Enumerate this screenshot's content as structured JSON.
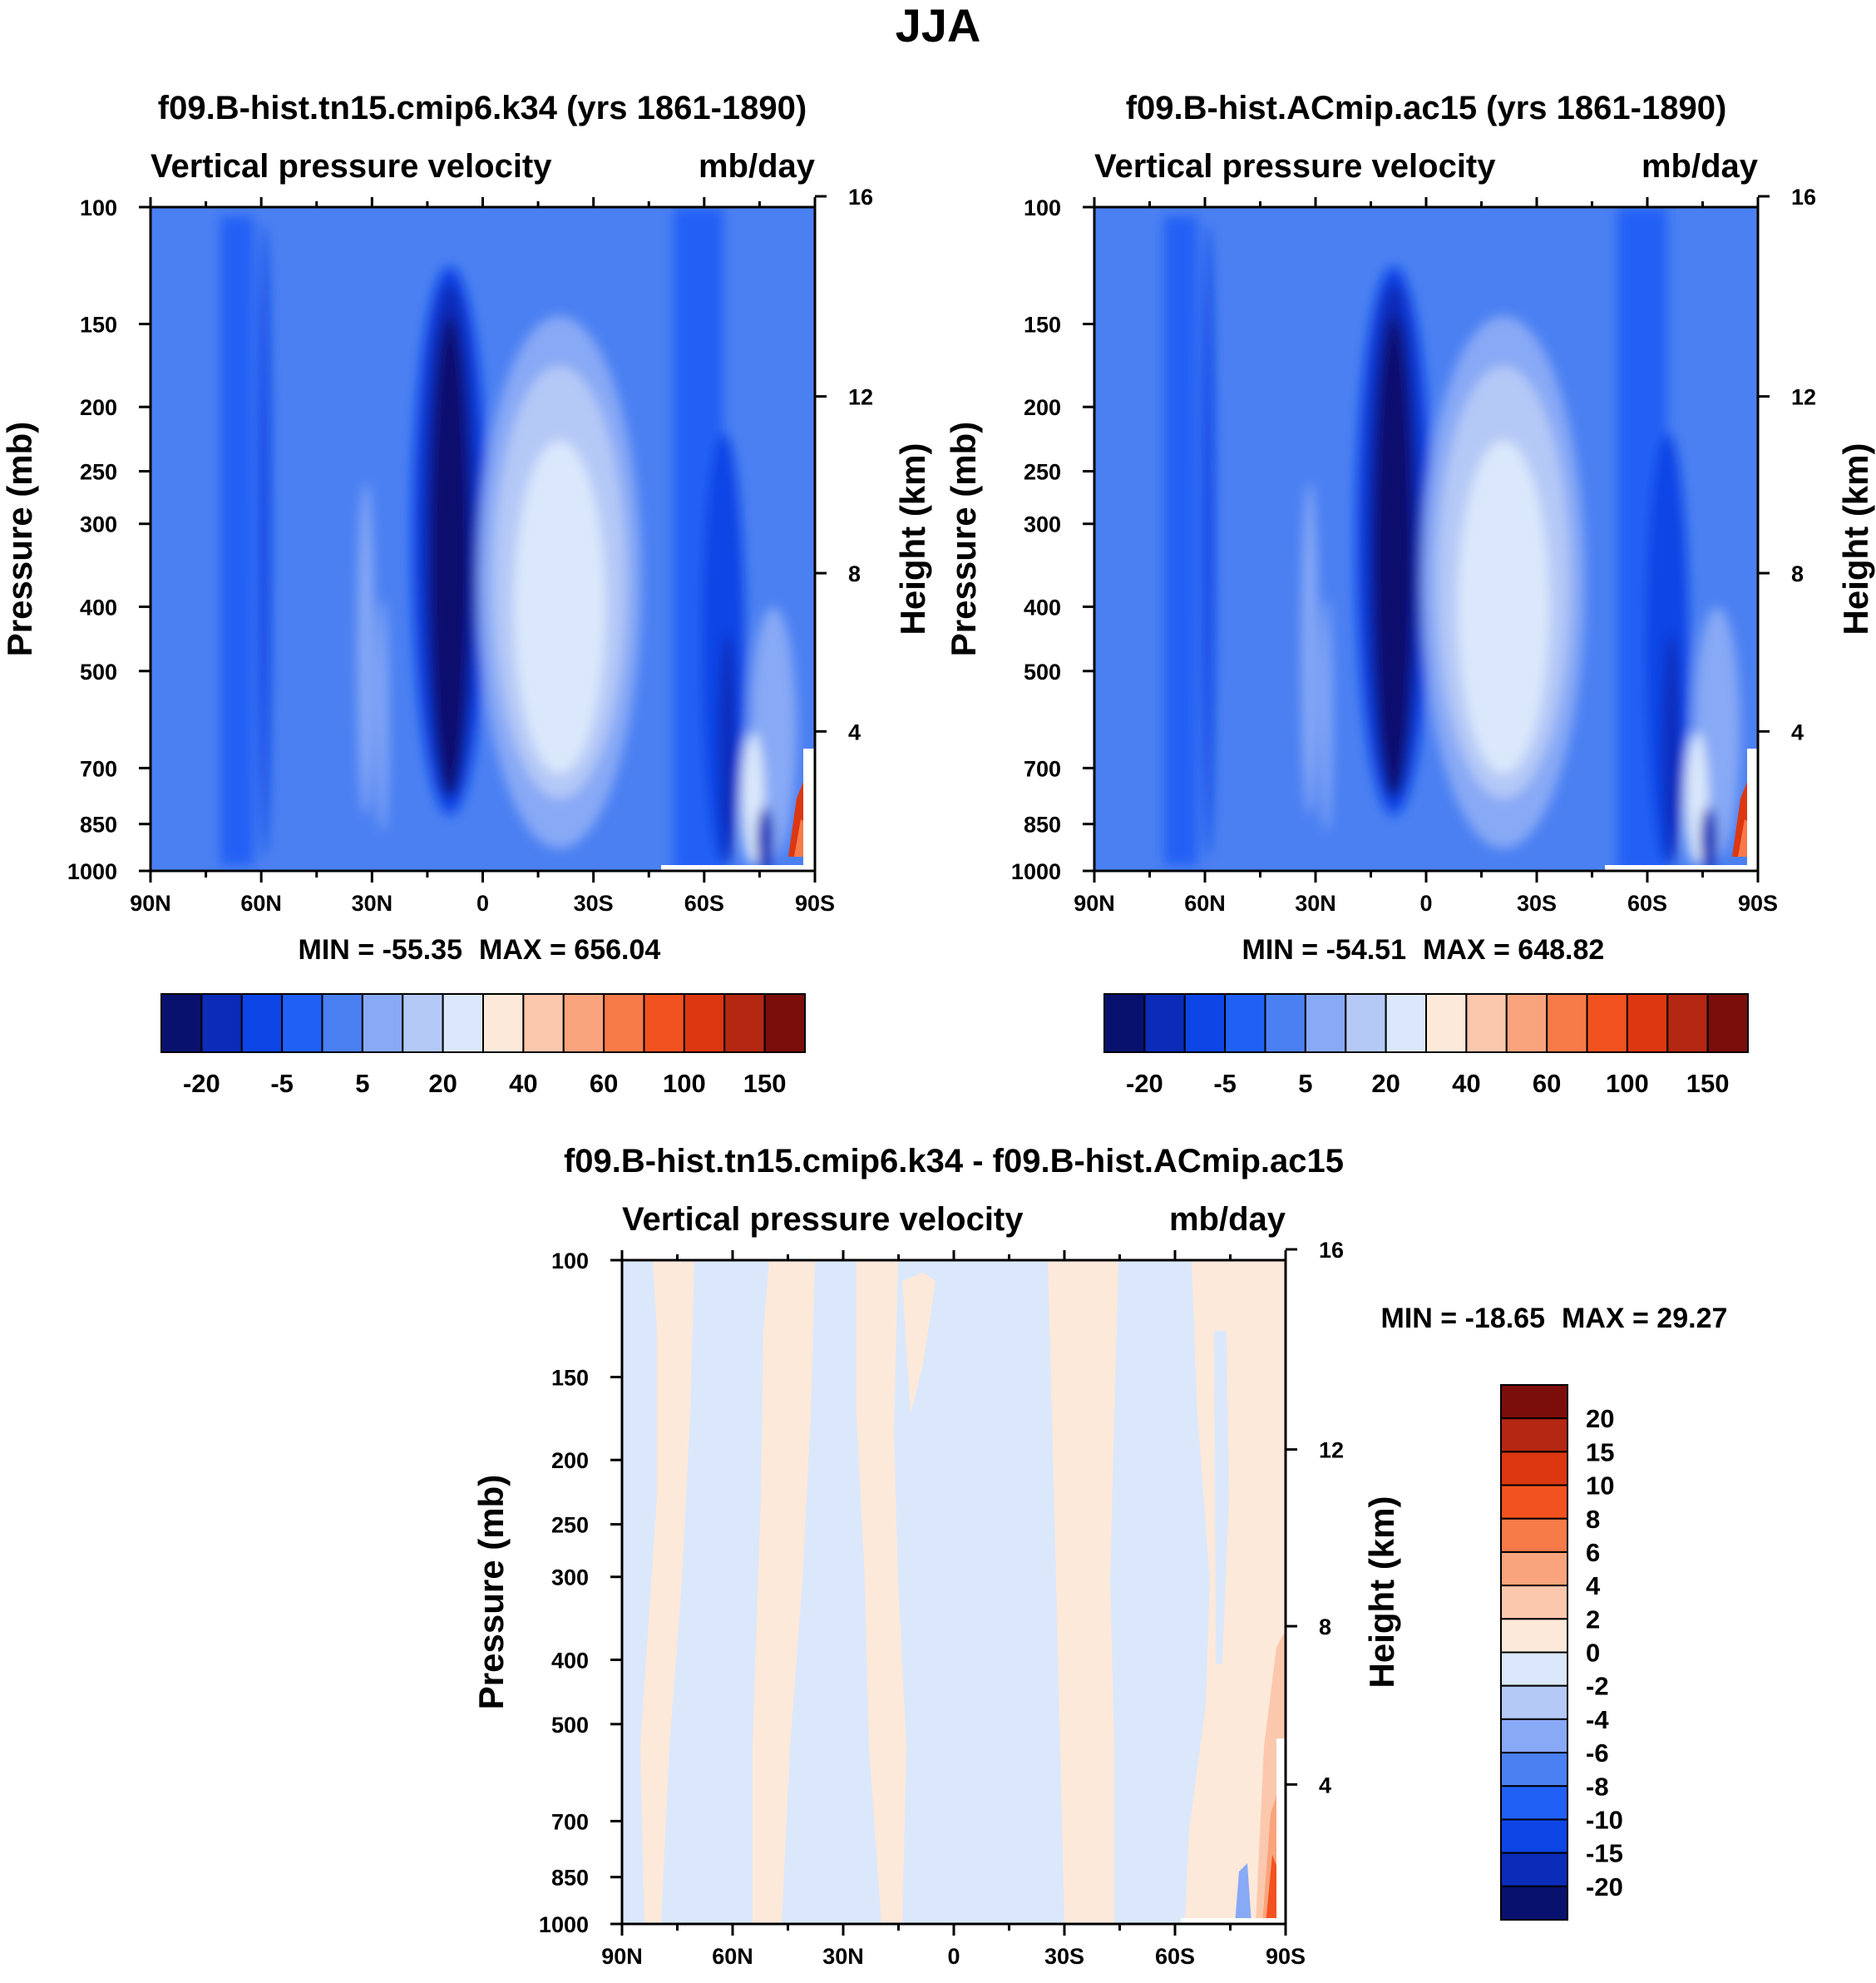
{
  "figure_title": "JJA",
  "colors": {
    "abs_palette": [
      "#08116e",
      "#0a2cb8",
      "#0d45e6",
      "#2060f5",
      "#4b80f2",
      "#88a9f5",
      "#b5c9f7",
      "#dbe8fb",
      "#fde9da",
      "#fbc8ad",
      "#f9a47c",
      "#f77a49",
      "#f2521f",
      "#dc3711",
      "#b42712",
      "#7b0e0b"
    ],
    "diff_palette": [
      "#08116e",
      "#0a2cb8",
      "#0d45e6",
      "#2060f5",
      "#4b80f2",
      "#88a9f5",
      "#b5c9f7",
      "#dbe8fb",
      "#fde9da",
      "#fbc8ad",
      "#f9a47c",
      "#f77a49",
      "#f2521f",
      "#dc3711",
      "#b42712",
      "#7b0e0b"
    ]
  },
  "chart_data": [
    {
      "type": "heatmap",
      "id": "panel-a",
      "title": "f09.B-hist.tn15.cmip6.k34 (yrs 1861-1890)",
      "left_string": "Vertical pressure velocity",
      "right_string": "mb/day",
      "xlabel": "",
      "ylabel": "Pressure (mb)",
      "y2label": "Height (km)",
      "x_ticks": [
        "90N",
        "60N",
        "30N",
        "0",
        "30S",
        "60S",
        "90S"
      ],
      "y_ticks": [
        100,
        150,
        200,
        250,
        300,
        400,
        500,
        700,
        850,
        1000
      ],
      "y2_ticks": [
        16,
        12,
        8,
        4
      ],
      "ylim": [
        1000,
        100
      ],
      "xlim": [
        90,
        -90
      ],
      "min_label": "MIN = -55.35",
      "max_label": "MAX = 656.04",
      "min": -55.35,
      "max": 656.04,
      "colorbar_labels": [
        "-20",
        "-5",
        "5",
        "20",
        "40",
        "60",
        "100",
        "150"
      ],
      "levels": [
        -30,
        -20,
        -10,
        -5,
        0,
        5,
        10,
        20,
        30,
        40,
        50,
        60,
        80,
        100,
        120,
        150
      ]
    },
    {
      "type": "heatmap",
      "id": "panel-b",
      "title": "f09.B-hist.ACmip.ac15 (yrs 1861-1890)",
      "left_string": "Vertical pressure velocity",
      "right_string": "mb/day",
      "xlabel": "",
      "ylabel": "Pressure (mb)",
      "y2label": "Height (km)",
      "x_ticks": [
        "90N",
        "60N",
        "30N",
        "0",
        "30S",
        "60S",
        "90S"
      ],
      "y_ticks": [
        100,
        150,
        200,
        250,
        300,
        400,
        500,
        700,
        850,
        1000
      ],
      "y2_ticks": [
        16,
        12,
        8,
        4
      ],
      "ylim": [
        1000,
        100
      ],
      "xlim": [
        90,
        -90
      ],
      "min_label": "MIN = -54.51",
      "max_label": "MAX = 648.82",
      "min": -54.51,
      "max": 648.82,
      "colorbar_labels": [
        "-20",
        "-5",
        "5",
        "20",
        "40",
        "60",
        "100",
        "150"
      ],
      "levels": [
        -30,
        -20,
        -10,
        -5,
        0,
        5,
        10,
        20,
        30,
        40,
        50,
        60,
        80,
        100,
        120,
        150
      ]
    },
    {
      "type": "heatmap",
      "id": "panel-diff",
      "title": "f09.B-hist.tn15.cmip6.k34 - f09.B-hist.ACmip.ac15",
      "left_string": "Vertical pressure velocity",
      "right_string": "mb/day",
      "xlabel": "",
      "ylabel": "Pressure (mb)",
      "y2label": "Height (km)",
      "x_ticks": [
        "90N",
        "60N",
        "30N",
        "0",
        "30S",
        "60S",
        "90S"
      ],
      "y_ticks": [
        100,
        150,
        200,
        250,
        300,
        400,
        500,
        700,
        850,
        1000
      ],
      "y2_ticks": [
        16,
        12,
        8,
        4
      ],
      "ylim": [
        1000,
        100
      ],
      "xlim": [
        90,
        -90
      ],
      "min_label": "MIN = -18.65",
      "max_label": "MAX =  29.27",
      "min": -18.65,
      "max": 29.27,
      "colorbar_labels": [
        "20",
        "15",
        "10",
        "8",
        "6",
        "4",
        "2",
        "0",
        "-2",
        "-4",
        "-6",
        "-8",
        "-10",
        "-15",
        "-20"
      ]
    }
  ]
}
